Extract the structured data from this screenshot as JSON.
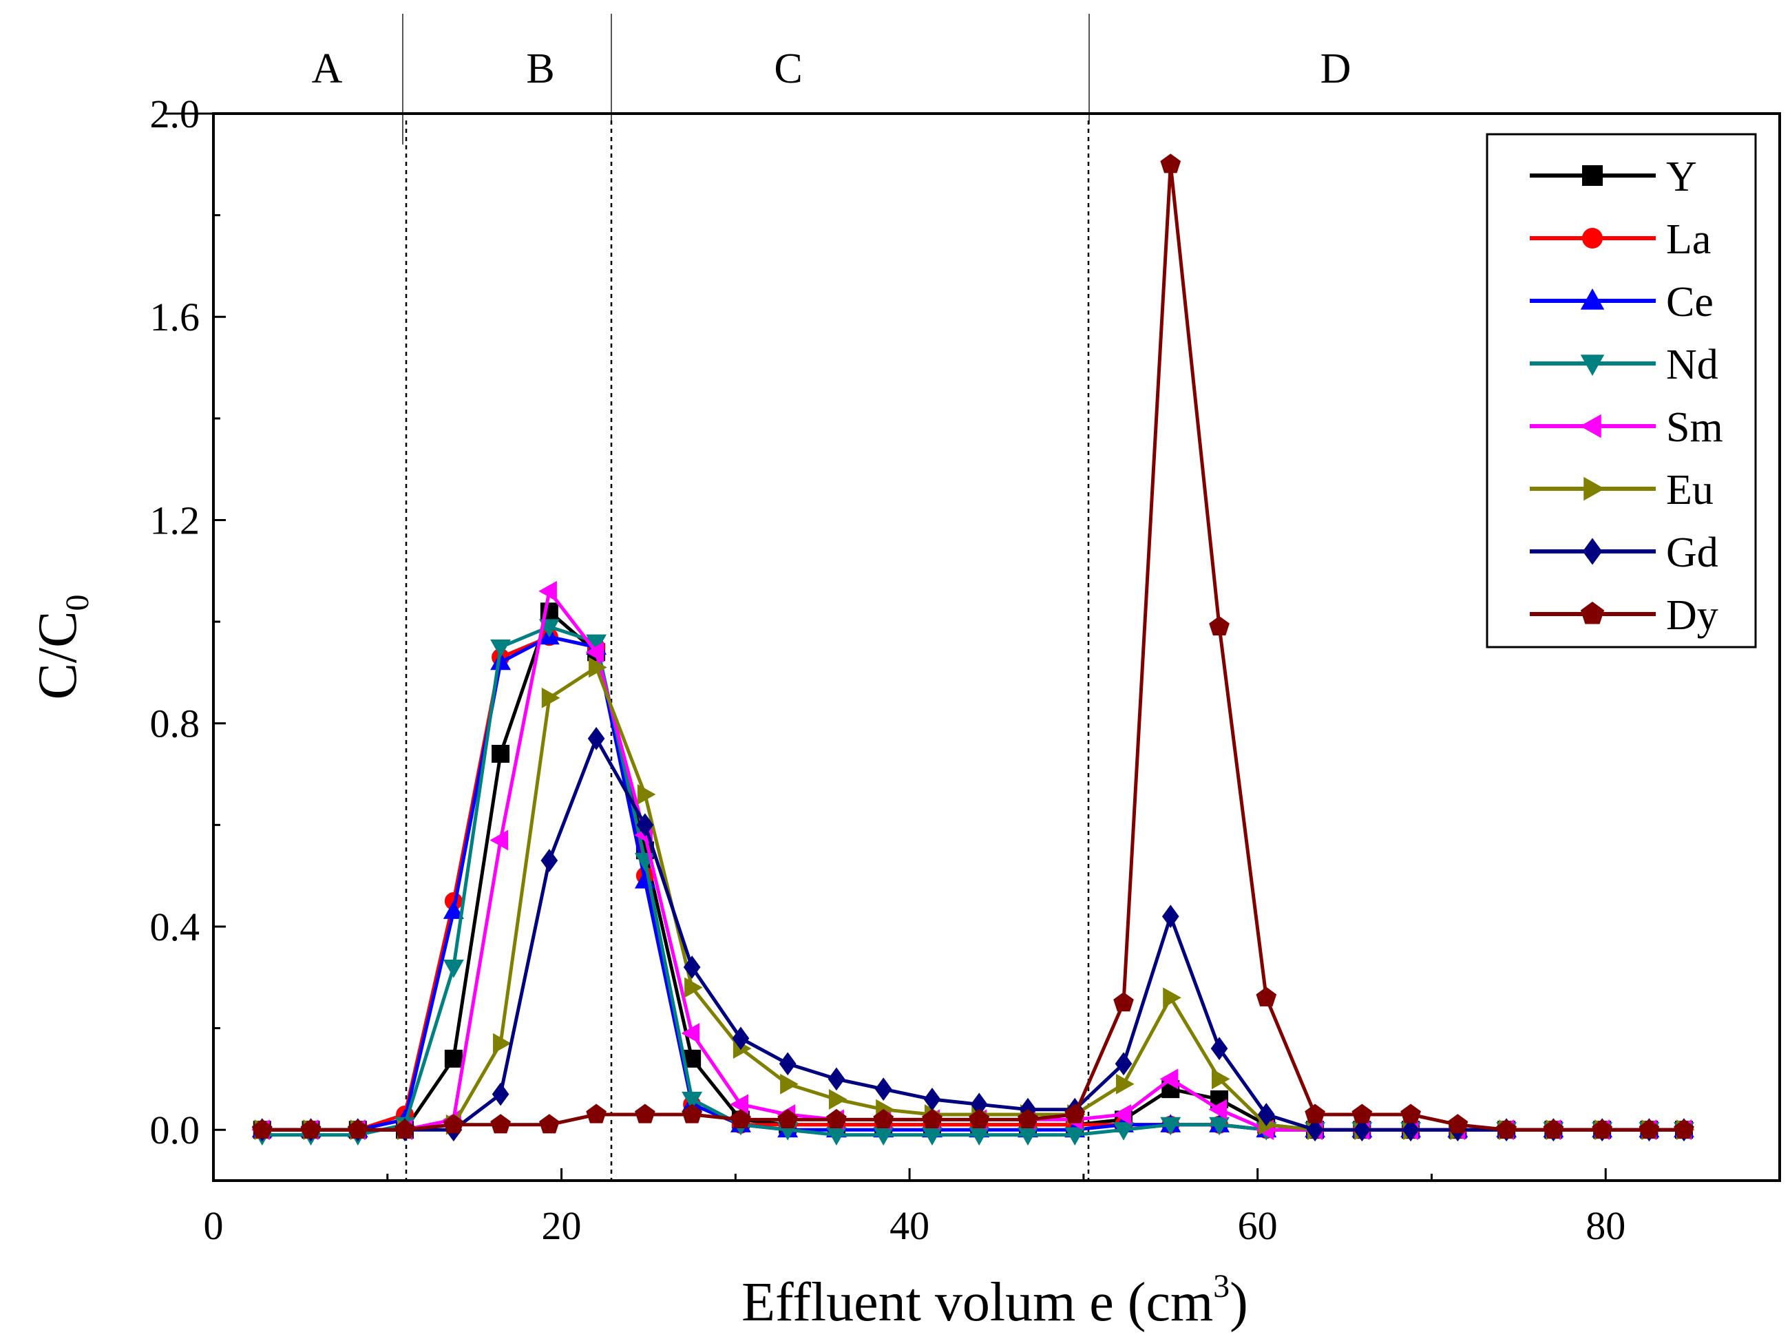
{
  "chart_data": {
    "type": "line",
    "title": "",
    "xlabel": "Effluent volume (cm3)",
    "xlabel_main": "Effluent volum e (cm",
    "xlabel_sup": "3",
    "xlabel_close": ")",
    "ylabel": "C/C0",
    "ylabel_main": "C/C",
    "ylabel_sub": "0",
    "xlim": [
      0,
      90
    ],
    "ylim": [
      -0.1,
      2.0
    ],
    "xticks": [
      0,
      20,
      40,
      60,
      80
    ],
    "xtick_labels": [
      "0",
      "20",
      "40",
      "60",
      "80"
    ],
    "yticks": [
      0.0,
      0.4,
      0.8,
      1.2,
      1.6,
      2.0
    ],
    "ytick_labels": [
      "0.0",
      "0.4",
      "0.8",
      "1.2",
      "1.6",
      "2.0"
    ],
    "regions": [
      {
        "label": "A",
        "start": 0,
        "end": 11
      },
      {
        "label": "B",
        "start": 11,
        "end": 23
      },
      {
        "label": "C",
        "start": 23,
        "end": 50.5
      },
      {
        "label": "D",
        "start": 50.5,
        "end": 90
      }
    ],
    "x": [
      2.8,
      5.6,
      8.3,
      11.0,
      13.8,
      16.5,
      19.3,
      22.0,
      24.8,
      27.5,
      30.3,
      33.0,
      35.8,
      38.5,
      41.3,
      44.0,
      46.8,
      49.5,
      52.3,
      55.0,
      57.8,
      60.5,
      63.3,
      66.0,
      68.8,
      71.5,
      74.3,
      77.0,
      79.8,
      82.5,
      84.5
    ],
    "series": [
      {
        "name": "Y",
        "color": "#000000",
        "marker": "square",
        "values": [
          0,
          0,
          0,
          0,
          0.14,
          0.74,
          1.02,
          0.94,
          0.55,
          0.14,
          0.02,
          0.01,
          0.01,
          0.01,
          0.01,
          0.01,
          0.01,
          0.01,
          0.02,
          0.08,
          0.06,
          0.01,
          0,
          0,
          0,
          0,
          0,
          0,
          0,
          0,
          0
        ]
      },
      {
        "name": "La",
        "color": "#ff0000",
        "marker": "circle",
        "values": [
          0,
          0,
          0,
          0.03,
          0.45,
          0.93,
          0.97,
          0.95,
          0.5,
          0.05,
          0.01,
          0.01,
          0.01,
          0.01,
          0.01,
          0.01,
          0.01,
          0.01,
          0.01,
          0.01,
          0.01,
          0,
          0,
          0,
          0,
          0,
          0,
          0,
          0,
          0,
          0
        ]
      },
      {
        "name": "Ce",
        "color": "#0000ff",
        "marker": "triangle-up",
        "values": [
          0,
          0,
          0,
          0.02,
          0.43,
          0.92,
          0.97,
          0.95,
          0.49,
          0.05,
          0.01,
          0,
          0,
          0,
          0,
          0,
          0,
          0,
          0.01,
          0.01,
          0.01,
          0,
          0,
          0,
          0,
          0,
          0,
          0,
          0,
          0,
          0
        ]
      },
      {
        "name": "Nd",
        "color": "#008080",
        "marker": "triangle-down",
        "values": [
          -0.01,
          -0.01,
          -0.01,
          0.01,
          0.32,
          0.95,
          0.99,
          0.96,
          0.53,
          0.06,
          0.01,
          0,
          -0.01,
          -0.01,
          -0.01,
          -0.01,
          -0.01,
          -0.01,
          0,
          0.01,
          0.01,
          0,
          0,
          0,
          0,
          0,
          0,
          0,
          0,
          0,
          0
        ]
      },
      {
        "name": "Sm",
        "color": "#ff00ff",
        "marker": "triangle-left",
        "values": [
          0,
          0,
          0,
          0,
          0.02,
          0.57,
          1.06,
          0.94,
          0.58,
          0.19,
          0.05,
          0.03,
          0.02,
          0.02,
          0.02,
          0.02,
          0.02,
          0.02,
          0.03,
          0.1,
          0.04,
          0,
          0,
          0,
          0,
          0,
          0,
          0,
          0,
          0,
          0
        ]
      },
      {
        "name": "Eu",
        "color": "#808000",
        "marker": "triangle-right",
        "values": [
          0,
          0,
          0,
          0,
          0.01,
          0.17,
          0.85,
          0.91,
          0.66,
          0.28,
          0.16,
          0.09,
          0.06,
          0.04,
          0.03,
          0.03,
          0.03,
          0.03,
          0.09,
          0.26,
          0.1,
          0.01,
          0,
          0,
          0,
          0,
          0,
          0,
          0,
          0,
          0
        ]
      },
      {
        "name": "Gd",
        "color": "#000080",
        "marker": "diamond",
        "values": [
          0,
          0,
          0,
          0,
          0,
          0.07,
          0.53,
          0.77,
          0.6,
          0.32,
          0.18,
          0.13,
          0.1,
          0.08,
          0.06,
          0.05,
          0.04,
          0.04,
          0.13,
          0.42,
          0.16,
          0.03,
          0,
          0,
          0,
          0,
          0,
          0,
          0,
          0,
          0
        ]
      },
      {
        "name": "Dy",
        "color": "#800000",
        "marker": "pentagon",
        "values": [
          0,
          0,
          0,
          0,
          0.01,
          0.01,
          0.01,
          0.03,
          0.03,
          0.03,
          0.02,
          0.02,
          0.02,
          0.02,
          0.02,
          0.02,
          0.02,
          0.03,
          0.25,
          1.9,
          0.99,
          0.26,
          0.03,
          0.03,
          0.03,
          0.01,
          0,
          0,
          0,
          0,
          0
        ]
      }
    ]
  }
}
